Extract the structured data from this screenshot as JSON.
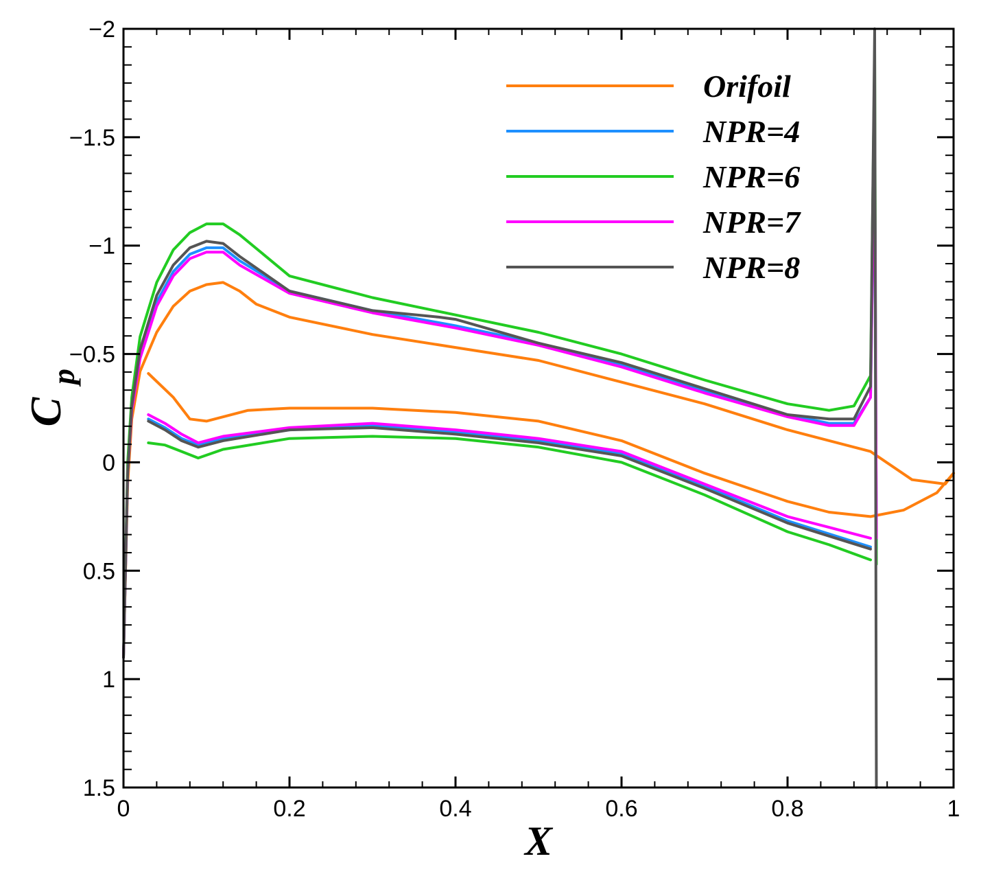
{
  "chart_data": {
    "type": "line",
    "title": "",
    "xlabel": "X",
    "ylabel": "C",
    "ylabel_subscript": "p",
    "xlim": [
      0,
      1
    ],
    "ylim": [
      -2,
      1.5
    ],
    "y_inverted": true,
    "grid": false,
    "legend_position": "top-right",
    "x_ticks": [
      0,
      0.2,
      0.4,
      0.6,
      0.8,
      1
    ],
    "x_tick_labels": [
      "0",
      "0.2",
      "0.4",
      "0.6",
      "0.8",
      "1"
    ],
    "y_ticks": [
      -2,
      -1.5,
      -1,
      -0.5,
      0,
      0.5,
      1,
      1.5
    ],
    "y_tick_labels": [
      "-2",
      "-1.5",
      "-1",
      "-0.5",
      "0",
      "0.5",
      "1",
      "1.5"
    ],
    "series": [
      {
        "name": "Orifoil",
        "color": "#ff7f0e",
        "upper": [
          [
            0,
            0.9
          ],
          [
            0.005,
            0.1
          ],
          [
            0.01,
            -0.2
          ],
          [
            0.02,
            -0.42
          ],
          [
            0.04,
            -0.6
          ],
          [
            0.06,
            -0.72
          ],
          [
            0.08,
            -0.79
          ],
          [
            0.1,
            -0.82
          ],
          [
            0.12,
            -0.83
          ],
          [
            0.14,
            -0.79
          ],
          [
            0.16,
            -0.73
          ],
          [
            0.2,
            -0.67
          ],
          [
            0.3,
            -0.59
          ],
          [
            0.4,
            -0.53
          ],
          [
            0.5,
            -0.47
          ],
          [
            0.6,
            -0.37
          ],
          [
            0.7,
            -0.27
          ],
          [
            0.8,
            -0.15
          ],
          [
            0.9,
            -0.05
          ],
          [
            0.95,
            0.08
          ],
          [
            0.99,
            0.1
          ],
          [
            1,
            0.05
          ]
        ],
        "lower": [
          [
            0.03,
            -0.41
          ],
          [
            0.06,
            -0.3
          ],
          [
            0.08,
            -0.2
          ],
          [
            0.1,
            -0.19
          ],
          [
            0.15,
            -0.24
          ],
          [
            0.2,
            -0.25
          ],
          [
            0.3,
            -0.25
          ],
          [
            0.4,
            -0.23
          ],
          [
            0.5,
            -0.19
          ],
          [
            0.6,
            -0.1
          ],
          [
            0.7,
            0.05
          ],
          [
            0.8,
            0.18
          ],
          [
            0.85,
            0.23
          ],
          [
            0.9,
            0.25
          ],
          [
            0.94,
            0.22
          ],
          [
            0.98,
            0.14
          ],
          [
            1,
            0.05
          ]
        ]
      },
      {
        "name": "NPR=4",
        "color": "#1e90ff",
        "upper": [
          [
            0,
            0.9
          ],
          [
            0.005,
            0.05
          ],
          [
            0.01,
            -0.25
          ],
          [
            0.02,
            -0.5
          ],
          [
            0.04,
            -0.74
          ],
          [
            0.06,
            -0.88
          ],
          [
            0.08,
            -0.96
          ],
          [
            0.1,
            -0.99
          ],
          [
            0.12,
            -0.99
          ],
          [
            0.14,
            -0.93
          ],
          [
            0.2,
            -0.79
          ],
          [
            0.3,
            -0.7
          ],
          [
            0.4,
            -0.63
          ],
          [
            0.5,
            -0.55
          ],
          [
            0.6,
            -0.45
          ],
          [
            0.7,
            -0.33
          ],
          [
            0.8,
            -0.22
          ],
          [
            0.85,
            -0.18
          ],
          [
            0.88,
            -0.18
          ],
          [
            0.9,
            -0.3
          ],
          [
            0.905,
            -1.5
          ],
          [
            0.907,
            0.4
          ]
        ],
        "lower": [
          [
            0.03,
            -0.2
          ],
          [
            0.05,
            -0.16
          ],
          [
            0.07,
            -0.11
          ],
          [
            0.09,
            -0.08
          ],
          [
            0.12,
            -0.11
          ],
          [
            0.2,
            -0.15
          ],
          [
            0.3,
            -0.17
          ],
          [
            0.4,
            -0.14
          ],
          [
            0.5,
            -0.1
          ],
          [
            0.6,
            -0.04
          ],
          [
            0.7,
            0.11
          ],
          [
            0.8,
            0.27
          ],
          [
            0.85,
            0.33
          ],
          [
            0.9,
            0.39
          ]
        ]
      },
      {
        "name": "NPR=6",
        "color": "#22cc22",
        "upper": [
          [
            0,
            0.9
          ],
          [
            0.005,
            0.0
          ],
          [
            0.01,
            -0.3
          ],
          [
            0.02,
            -0.58
          ],
          [
            0.04,
            -0.83
          ],
          [
            0.06,
            -0.98
          ],
          [
            0.08,
            -1.06
          ],
          [
            0.1,
            -1.1
          ],
          [
            0.12,
            -1.1
          ],
          [
            0.14,
            -1.05
          ],
          [
            0.2,
            -0.86
          ],
          [
            0.3,
            -0.76
          ],
          [
            0.4,
            -0.68
          ],
          [
            0.5,
            -0.6
          ],
          [
            0.6,
            -0.5
          ],
          [
            0.7,
            -0.38
          ],
          [
            0.8,
            -0.27
          ],
          [
            0.85,
            -0.24
          ],
          [
            0.88,
            -0.26
          ],
          [
            0.9,
            -0.4
          ],
          [
            0.905,
            -1.9
          ],
          [
            0.907,
            0.47
          ]
        ],
        "lower": [
          [
            0.03,
            -0.09
          ],
          [
            0.05,
            -0.08
          ],
          [
            0.07,
            -0.05
          ],
          [
            0.09,
            -0.02
          ],
          [
            0.12,
            -0.06
          ],
          [
            0.2,
            -0.11
          ],
          [
            0.3,
            -0.12
          ],
          [
            0.4,
            -0.11
          ],
          [
            0.5,
            -0.07
          ],
          [
            0.6,
            0.0
          ],
          [
            0.7,
            0.15
          ],
          [
            0.8,
            0.32
          ],
          [
            0.85,
            0.38
          ],
          [
            0.9,
            0.45
          ]
        ]
      },
      {
        "name": "NPR=7",
        "color": "#ff00ff",
        "upper": [
          [
            0,
            0.9
          ],
          [
            0.005,
            0.05
          ],
          [
            0.01,
            -0.24
          ],
          [
            0.02,
            -0.48
          ],
          [
            0.04,
            -0.72
          ],
          [
            0.06,
            -0.86
          ],
          [
            0.08,
            -0.94
          ],
          [
            0.1,
            -0.97
          ],
          [
            0.12,
            -0.97
          ],
          [
            0.14,
            -0.91
          ],
          [
            0.2,
            -0.78
          ],
          [
            0.3,
            -0.69
          ],
          [
            0.4,
            -0.62
          ],
          [
            0.5,
            -0.54
          ],
          [
            0.6,
            -0.44
          ],
          [
            0.7,
            -0.32
          ],
          [
            0.8,
            -0.21
          ],
          [
            0.85,
            -0.17
          ],
          [
            0.88,
            -0.17
          ],
          [
            0.9,
            -0.3
          ],
          [
            0.905,
            -1.57
          ],
          [
            0.907,
            0.35
          ]
        ],
        "lower": [
          [
            0.03,
            -0.22
          ],
          [
            0.05,
            -0.18
          ],
          [
            0.07,
            -0.13
          ],
          [
            0.09,
            -0.09
          ],
          [
            0.12,
            -0.12
          ],
          [
            0.2,
            -0.16
          ],
          [
            0.3,
            -0.18
          ],
          [
            0.4,
            -0.15
          ],
          [
            0.5,
            -0.11
          ],
          [
            0.6,
            -0.05
          ],
          [
            0.7,
            0.1
          ],
          [
            0.8,
            0.25
          ],
          [
            0.85,
            0.3
          ],
          [
            0.9,
            0.35
          ]
        ]
      },
      {
        "name": "NPR=8",
        "color": "#555555",
        "upper": [
          [
            0,
            0.9
          ],
          [
            0.005,
            0.05
          ],
          [
            0.01,
            -0.26
          ],
          [
            0.02,
            -0.52
          ],
          [
            0.04,
            -0.77
          ],
          [
            0.06,
            -0.91
          ],
          [
            0.08,
            -0.99
          ],
          [
            0.1,
            -1.02
          ],
          [
            0.12,
            -1.01
          ],
          [
            0.14,
            -0.95
          ],
          [
            0.2,
            -0.79
          ],
          [
            0.3,
            -0.7
          ],
          [
            0.38,
            -0.67
          ],
          [
            0.4,
            -0.66
          ],
          [
            0.5,
            -0.55
          ],
          [
            0.6,
            -0.46
          ],
          [
            0.7,
            -0.34
          ],
          [
            0.8,
            -0.22
          ],
          [
            0.85,
            -0.2
          ],
          [
            0.88,
            -0.2
          ],
          [
            0.9,
            -0.35
          ],
          [
            0.905,
            -2
          ],
          [
            0.907,
            1.5
          ]
        ],
        "lower": [
          [
            0.03,
            -0.19
          ],
          [
            0.05,
            -0.15
          ],
          [
            0.07,
            -0.1
          ],
          [
            0.09,
            -0.07
          ],
          [
            0.12,
            -0.1
          ],
          [
            0.2,
            -0.15
          ],
          [
            0.3,
            -0.16
          ],
          [
            0.4,
            -0.13
          ],
          [
            0.5,
            -0.09
          ],
          [
            0.6,
            -0.03
          ],
          [
            0.7,
            0.12
          ],
          [
            0.8,
            0.28
          ],
          [
            0.85,
            0.34
          ],
          [
            0.9,
            0.4
          ]
        ]
      }
    ]
  }
}
